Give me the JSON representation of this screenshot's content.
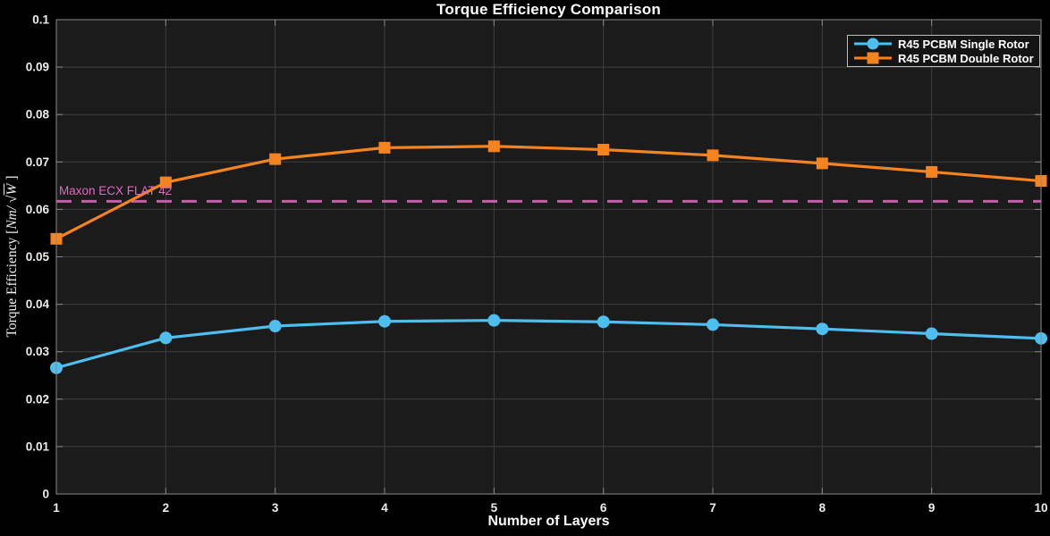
{
  "colors": {
    "background": "#000000",
    "plot_background": "#1b1b1b",
    "grid": "#3f3f3f",
    "axis": "#8a8a8a",
    "tick_text": "#ededed",
    "title_text": "#ffffff"
  },
  "chart_data": {
    "type": "line",
    "title": "Torque Efficiency Comparison",
    "xlabel": "Number of Layers",
    "ylabel": "Torque Efficiency [Nm/ √W ]",
    "ylabel_parts": {
      "text": "Torque Efficiency [",
      "math": "Nm/ ",
      "sqrt_symbol": "√",
      "radicand": "W",
      "close": " ]"
    },
    "xlim": [
      1,
      10
    ],
    "ylim": [
      0,
      0.1
    ],
    "xticks": [
      1,
      2,
      3,
      4,
      5,
      6,
      7,
      8,
      9,
      10
    ],
    "yticks": [
      0,
      0.01,
      0.02,
      0.03,
      0.04,
      0.05,
      0.06,
      0.07,
      0.08,
      0.09,
      0.1
    ],
    "grid": true,
    "legend_position": "top-right",
    "x": [
      1,
      2,
      3,
      4,
      5,
      6,
      7,
      8,
      9,
      10
    ],
    "series": [
      {
        "name": "R45 PCBM Single Rotor",
        "marker": "circle",
        "color": "#4DBEEE",
        "values": [
          0.0266,
          0.0329,
          0.0354,
          0.0364,
          0.0366,
          0.0363,
          0.0357,
          0.0348,
          0.0338,
          0.0328
        ]
      },
      {
        "name": "R45 PCBM Double Rotor",
        "marker": "square",
        "color": "#F5831F",
        "values": [
          0.0538,
          0.0657,
          0.0706,
          0.073,
          0.0733,
          0.0726,
          0.0714,
          0.0697,
          0.0679,
          0.066
        ]
      }
    ],
    "annotation": {
      "label": "Maxon ECX FLAT 42",
      "value": 0.0617,
      "style": "dashed",
      "color": "#C45FA9",
      "label_color": "#E26ABF"
    }
  }
}
